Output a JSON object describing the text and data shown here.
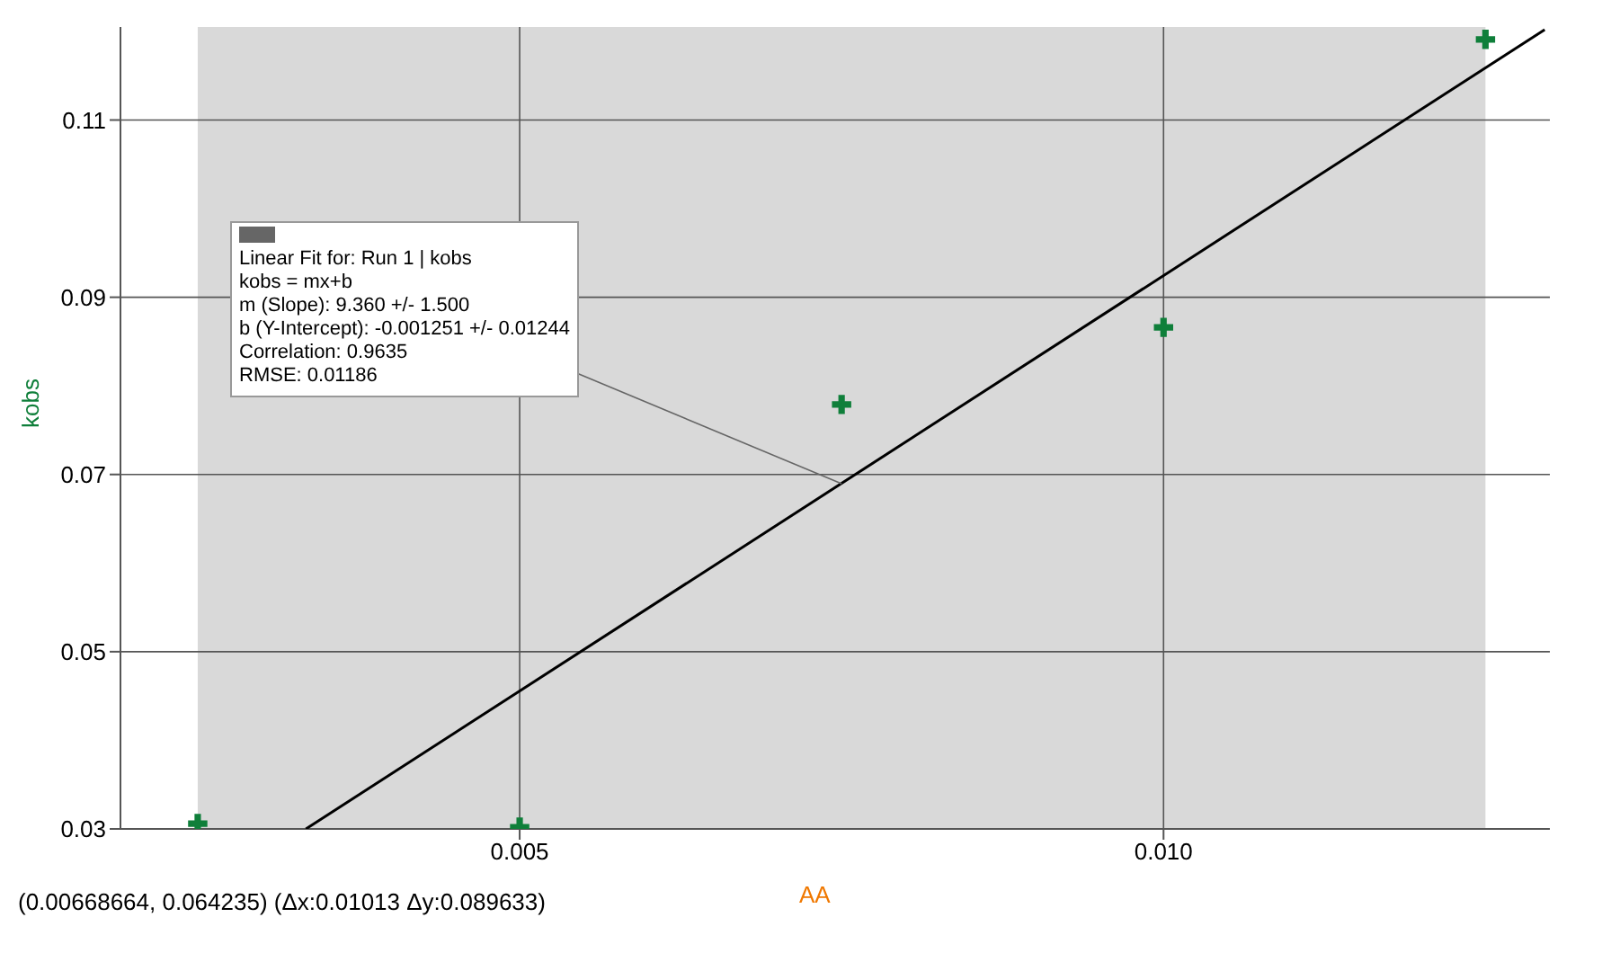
{
  "chart_data": {
    "type": "scatter",
    "xlabel": "AA",
    "ylabel": "kobs",
    "series": [
      {
        "color": "#0f7f3a",
        "marker": "cross",
        "x": [
          0.0025,
          0.005,
          0.0075,
          0.01,
          0.0125
        ],
        "values": [
          0.0306,
          0.0302,
          0.0779,
          0.0866,
          0.1191
        ]
      },
      {
        "type": "line",
        "color": "#000000",
        "marker": "none",
        "line_style": "solid",
        "x": [
          0.00334,
          0.01296
        ],
        "values": [
          0.03,
          0.1202
        ]
      }
    ],
    "xlim": [
      0.0019,
      0.013
    ],
    "ylim": [
      0.03,
      0.1205
    ],
    "xticks": [
      {
        "value": 0.005,
        "label": "0.005"
      },
      {
        "value": 0.01,
        "label": "0.010"
      }
    ],
    "yticks": [
      0.03,
      0.05,
      0.07,
      0.09,
      0.11
    ],
    "grid": true,
    "bands": [
      {
        "axis": "x",
        "from": 0.0025,
        "to": 0.0125,
        "color": "#d9d9d9"
      }
    ],
    "annotations": [
      {
        "text": "Linear Fit for: Run 1 | kobs\nkobs = mx+b\nm (Slope): 9.360 +/- 1.500\nb (Y-Intercept): -0.001251 +/- 0.01244\nCorrelation: 0.9635\nRMSE: 0.01186",
        "x": 0.0075,
        "y": 0.06895
      },
      "(0.00668664, 0.064235) (Δx:0.01013 Δy:0.089633)"
    ]
  }
}
